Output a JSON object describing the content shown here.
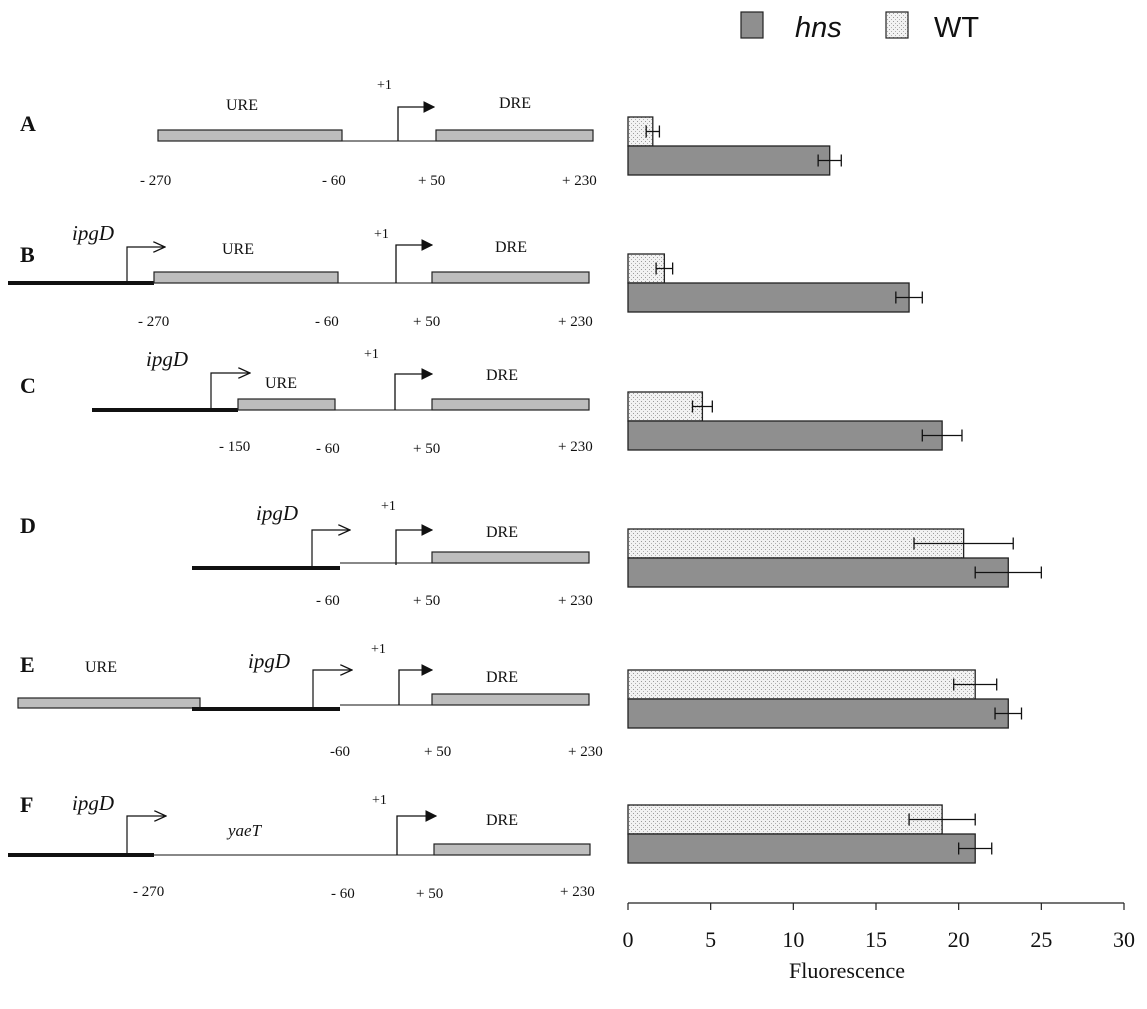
{
  "legend": [
    {
      "name": "hns",
      "italic": true,
      "color": "#8f8f8f",
      "pattern": "solid"
    },
    {
      "name": "WT",
      "italic": false,
      "color": "#efefef",
      "pattern": "dotted"
    }
  ],
  "constructs": [
    {
      "id": "A",
      "promoter": "",
      "regions": [
        {
          "label": "URE"
        },
        {
          "label": "DRE"
        }
      ],
      "tss_label": "+1",
      "positions": [
        "- 270",
        "- 60",
        "+ 50",
        "+ 230"
      ]
    },
    {
      "id": "B",
      "promoter": "ipgD",
      "regions": [
        {
          "label": "URE"
        },
        {
          "label": "DRE"
        }
      ],
      "tss_label": "+1",
      "positions": [
        "- 270",
        "- 60",
        "+ 50",
        "+ 230"
      ]
    },
    {
      "id": "C",
      "promoter": "ipgD",
      "regions": [
        {
          "label": "URE"
        },
        {
          "label": "DRE"
        }
      ],
      "tss_label": "+1",
      "positions": [
        "- 150",
        "- 60",
        "+ 50",
        "+ 230"
      ]
    },
    {
      "id": "D",
      "promoter": "ipgD",
      "regions": [
        {
          "label": "DRE"
        }
      ],
      "tss_label": "+1",
      "positions": [
        "- 60",
        "+ 50",
        "+ 230"
      ]
    },
    {
      "id": "E",
      "promoter": "ipgD",
      "regions": [
        {
          "label": "URE"
        },
        {
          "label": "DRE"
        }
      ],
      "tss_label": "+1",
      "positions": [
        "-60",
        "+ 50",
        "+ 230"
      ]
    },
    {
      "id": "F",
      "promoter": "ipgD",
      "gene": "yaeT",
      "regions": [
        {
          "label": "DRE"
        }
      ],
      "tss_label": "+1",
      "positions": [
        "- 270",
        "- 60",
        "+ 50",
        "+ 230"
      ]
    }
  ],
  "chart_data": {
    "type": "bar",
    "orientation": "horizontal",
    "categories": [
      "A",
      "B",
      "C",
      "D",
      "E",
      "F"
    ],
    "series": [
      {
        "name": "WT",
        "values": [
          1.5,
          2.2,
          4.5,
          20.3,
          21.0,
          19.0
        ],
        "errors": [
          0.4,
          0.5,
          0.6,
          3.0,
          1.3,
          2.0
        ]
      },
      {
        "name": "hns",
        "values": [
          12.2,
          17.0,
          19.0,
          23.0,
          23.0,
          21.0
        ],
        "errors": [
          0.7,
          0.8,
          1.2,
          2.0,
          0.8,
          1.0
        ]
      }
    ],
    "xlabel": "Fluorescence",
    "xlim": [
      0,
      30
    ],
    "xticks": [
      0,
      5,
      10,
      15,
      20,
      25,
      30
    ],
    "legend_position": "top-right",
    "grid": false
  }
}
